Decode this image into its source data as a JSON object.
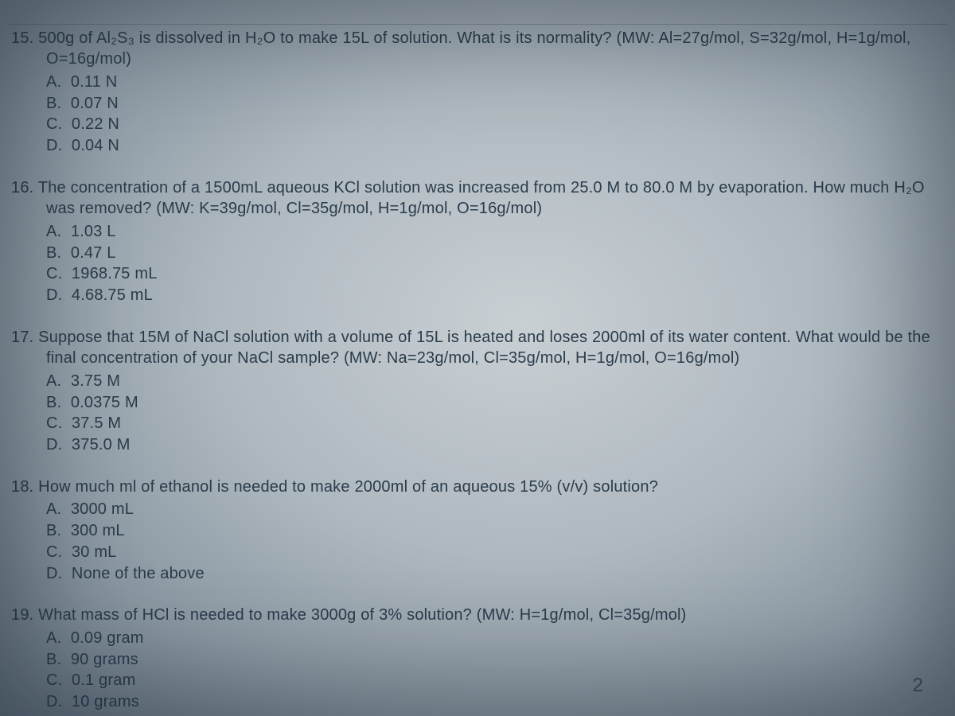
{
  "page_number": "2",
  "style": {
    "font_family": "Segoe UI",
    "base_font_size_pt": 15,
    "text_color": "#2a3b4a",
    "background_gradient": [
      "#c9d0d4",
      "#aeb8bf",
      "#8a97a2",
      "#5f6e7c"
    ],
    "rule_color": "#3c4b58"
  },
  "questions": [
    {
      "number": "15.",
      "text": "500g of Al₂S₃ is dissolved in H₂O to make 15L of solution. What is its normality? (MW: Al=27g/mol, S=32g/mol, H=1g/mol, O=16g/mol)",
      "options": {
        "A": "0.11 N",
        "B": "0.07 N",
        "C": "0.22 N",
        "D": "0.04 N"
      }
    },
    {
      "number": "16.",
      "text": "The concentration of a 1500mL aqueous KCl solution was increased from 25.0 M to 80.0 M by evaporation. How much H₂O was removed? (MW: K=39g/mol, Cl=35g/mol, H=1g/mol, O=16g/mol)",
      "options": {
        "A": "1.03 L",
        "B": "0.47 L",
        "C": "1968.75 mL",
        "D": "4.68.75 mL"
      }
    },
    {
      "number": "17.",
      "text": "Suppose that 15M of NaCl solution with a volume of 15L is heated and loses 2000ml of its water content. What would be the final concentration of your NaCl sample? (MW: Na=23g/mol, Cl=35g/mol, H=1g/mol, O=16g/mol)",
      "options": {
        "A": "3.75 M",
        "B": "0.0375 M",
        "C": "37.5 M",
        "D": "375.0 M"
      }
    },
    {
      "number": "18.",
      "text": "How much ml of ethanol is needed to make 2000ml of an aqueous 15% (v/v) solution?",
      "options": {
        "A": "3000 mL",
        "B": "300 mL",
        "C": "30 mL",
        "D": "None of the above"
      }
    },
    {
      "number": "19.",
      "text": "What mass of HCl is needed to make 3000g of 3% solution? (MW: H=1g/mol, Cl=35g/mol)",
      "options": {
        "A": "0.09 gram",
        "B": "90 grams",
        "C": "0.1 gram",
        "D": "10 grams"
      }
    }
  ]
}
